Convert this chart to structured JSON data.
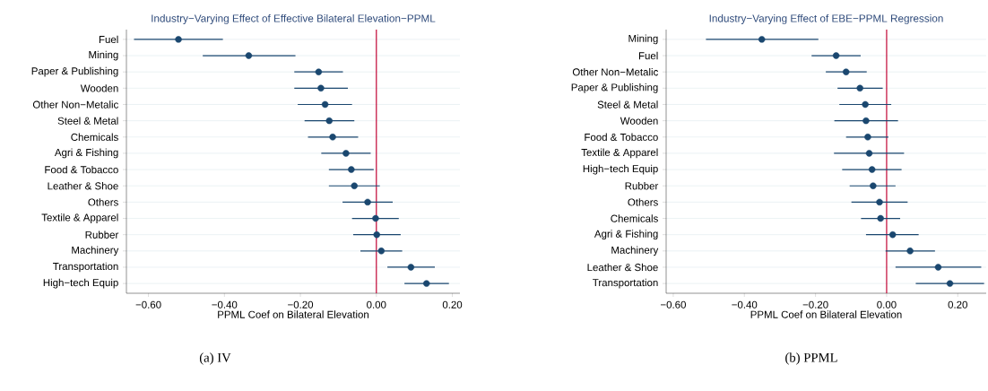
{
  "chart_data": [
    {
      "type": "scatter",
      "orientation": "horizontal",
      "title": "Industry−Varying Effect of Effective Bilateral Elevation−PPML",
      "xlabel": "PPML Coef on Bilateral Elevation",
      "categories": [
        "Fuel",
        "Mining",
        "Paper & Publishing",
        "Wooden",
        "Other Non−Metalic",
        "Steel & Metal",
        "Chemicals",
        "Agri & Fishing",
        "Food & Tobacco",
        "Leather & Shoe",
        "Others",
        "Textile & Apparel",
        "Rubber",
        "Machinery",
        "Transportation",
        "High−tech Equip"
      ],
      "series": [
        {
          "color": "#1a476f",
          "values": [
            -0.521,
            -0.336,
            -0.152,
            -0.146,
            -0.135,
            -0.124,
            -0.115,
            -0.08,
            -0.066,
            -0.058,
            -0.023,
            -0.002,
            0.001,
            0.013,
            0.091,
            0.132
          ],
          "errors": [
            [
              -0.638,
              -0.404
            ],
            [
              -0.457,
              -0.213
            ],
            [
              -0.216,
              -0.088
            ],
            [
              -0.216,
              -0.075
            ],
            [
              -0.207,
              -0.064
            ],
            [
              -0.189,
              -0.058
            ],
            [
              -0.18,
              -0.048
            ],
            [
              -0.145,
              -0.015
            ],
            [
              -0.125,
              -0.007
            ],
            [
              -0.125,
              0.009
            ],
            [
              -0.089,
              0.043
            ],
            [
              -0.064,
              0.059
            ],
            [
              -0.061,
              0.064
            ],
            [
              -0.042,
              0.068
            ],
            [
              0.029,
              0.154
            ],
            [
              0.074,
              0.191
            ]
          ]
        }
      ],
      "xlim": [
        -0.658,
        0.22
      ],
      "xticks": [
        {
          "value": -0.6,
          "label": "−0.60"
        },
        {
          "value": -0.4,
          "label": "−0.40"
        },
        {
          "value": -0.2,
          "label": "−0.20"
        },
        {
          "value": 0,
          "label": "0.00"
        },
        {
          "value": 0.2,
          "label": "0.20"
        }
      ],
      "ref_lines": [
        {
          "axis": "x",
          "value": 0,
          "color": "#c10534"
        }
      ],
      "grid": "y",
      "marker": "circle",
      "annotations": [
        "(a) IV"
      ]
    },
    {
      "type": "scatter",
      "orientation": "horizontal",
      "title": "Industry−Varying Effect of EBE−PPML Regression",
      "xlabel": "PPML Coef on Bilateral Elevation",
      "categories": [
        "Mining",
        "Fuel",
        "Other Non−Metalic",
        "Paper & Publishing",
        "Steel & Metal",
        "Wooden",
        "Food & Tobacco",
        "Textile & Apparel",
        "High−tech Equip",
        "Rubber",
        "Others",
        "Chemicals",
        "Agri & Fishing",
        "Machinery",
        "Leather & Shoe",
        "Transportation"
      ],
      "series": [
        {
          "color": "#1a476f",
          "values": [
            -0.351,
            -0.142,
            -0.114,
            -0.075,
            -0.06,
            -0.058,
            -0.053,
            -0.049,
            -0.041,
            -0.038,
            -0.02,
            -0.017,
            0.017,
            0.066,
            0.145,
            0.178
          ],
          "errors": [
            [
              -0.508,
              -0.192
            ],
            [
              -0.211,
              -0.073
            ],
            [
              -0.171,
              -0.056
            ],
            [
              -0.138,
              -0.011
            ],
            [
              -0.133,
              0.013
            ],
            [
              -0.147,
              0.032
            ],
            [
              -0.114,
              0.005
            ],
            [
              -0.148,
              0.049
            ],
            [
              -0.125,
              0.042
            ],
            [
              -0.104,
              0.025
            ],
            [
              -0.099,
              0.059
            ],
            [
              -0.072,
              0.038
            ],
            [
              -0.058,
              0.09
            ],
            [
              -0.003,
              0.136
            ],
            [
              0.025,
              0.266
            ],
            [
              0.082,
              0.274
            ]
          ]
        }
      ],
      "xlim": [
        -0.62,
        0.28
      ],
      "xticks": [
        {
          "value": -0.6,
          "label": "−0.60"
        },
        {
          "value": -0.4,
          "label": "−0.40"
        },
        {
          "value": -0.2,
          "label": "−0.20"
        },
        {
          "value": 0,
          "label": "0.00"
        },
        {
          "value": 0.2,
          "label": "0.20"
        }
      ],
      "ref_lines": [
        {
          "axis": "x",
          "value": 0,
          "color": "#c10534"
        }
      ],
      "grid": "y",
      "marker": "circle",
      "annotations": [
        "(b) PPML"
      ]
    }
  ]
}
